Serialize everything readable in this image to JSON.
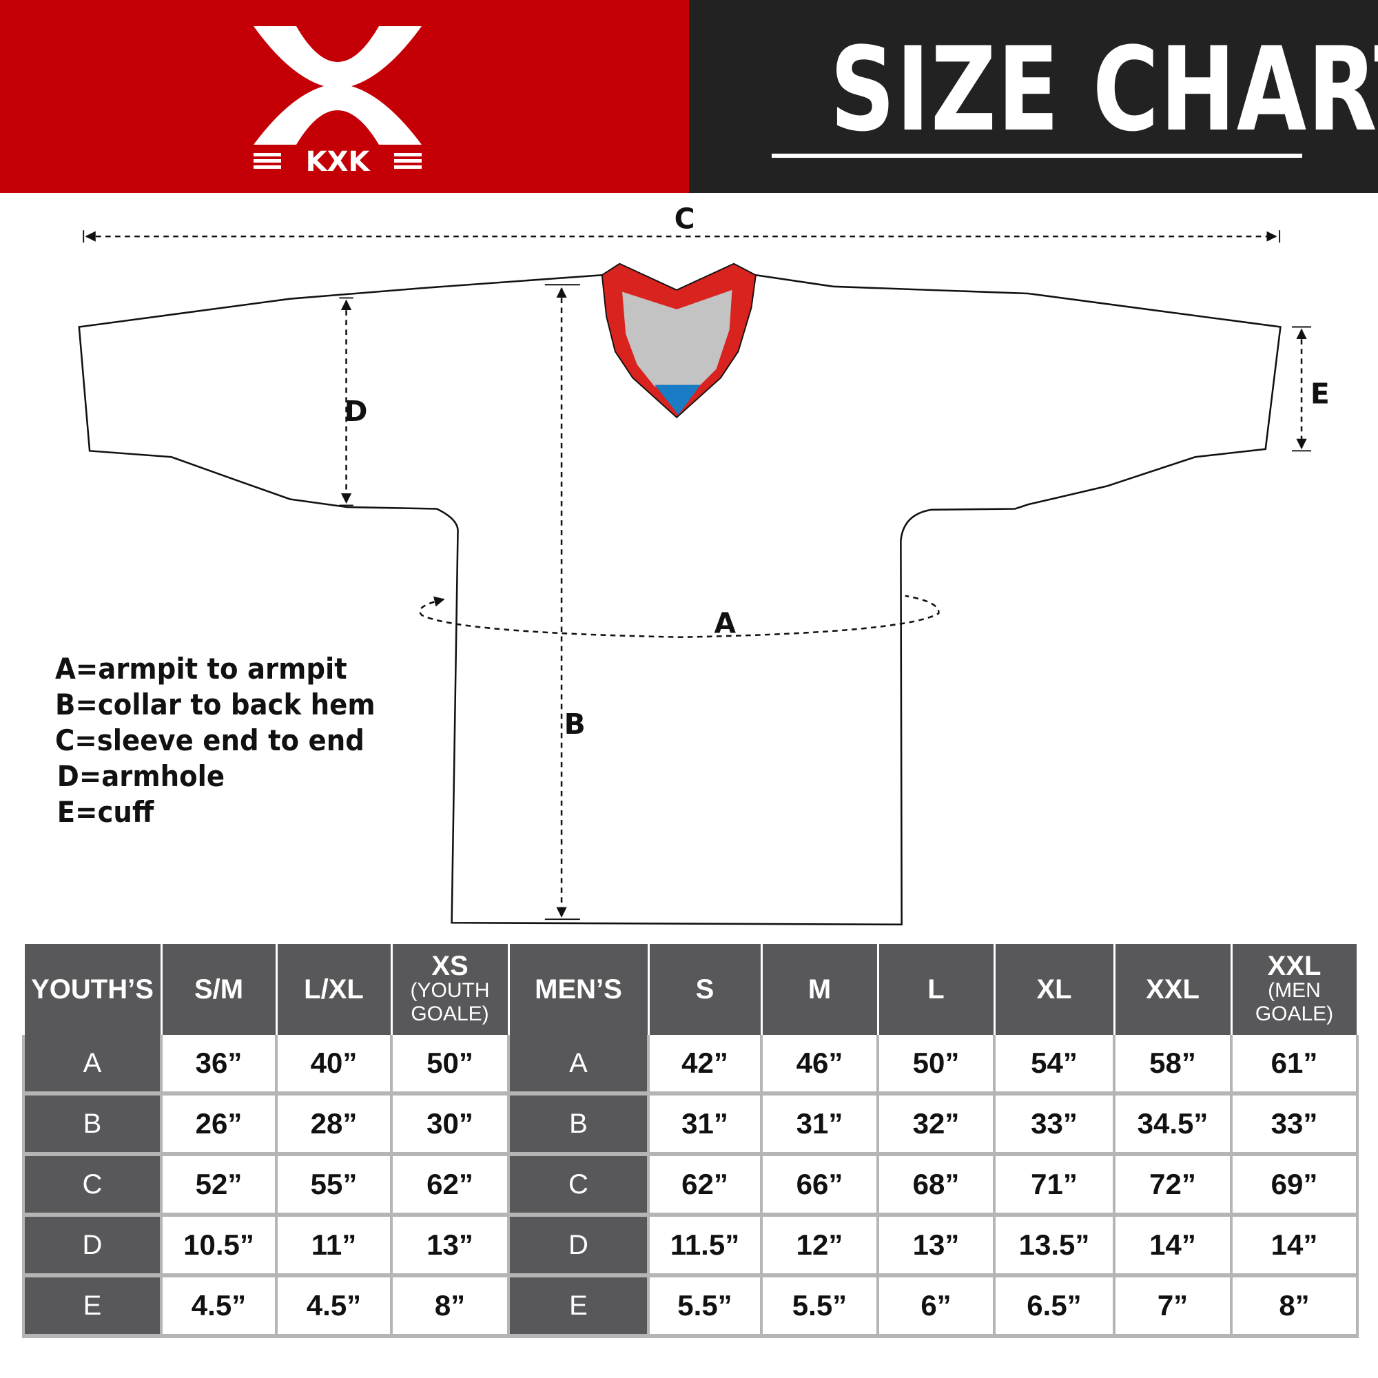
{
  "header": {
    "brand": "KXK",
    "title": "SIZE CHART",
    "brand_color": "#c40006",
    "title_bg_color": "#222222"
  },
  "diagram": {
    "labels": {
      "a": "A",
      "b": "B",
      "c": "C",
      "d": "D",
      "e": "E"
    },
    "collar_colors": {
      "trim": "#d8231f",
      "inner": "#c3c3c3",
      "tag": "#1a7cc4"
    }
  },
  "legend": [
    "A=armpit to armpit",
    "B=collar to back hem",
    "C=sleeve end to end",
    "D=armhole",
    "E=cuff"
  ],
  "table": {
    "youth": {
      "header": "YOUTH’S",
      "sizes": [
        {
          "main": "S/M",
          "sub": ""
        },
        {
          "main": "L/XL",
          "sub": ""
        },
        {
          "main": "XS",
          "sub": "(YOUTH GOALE)"
        }
      ]
    },
    "men": {
      "header": "MEN’S",
      "sizes": [
        {
          "main": "S",
          "sub": ""
        },
        {
          "main": "M",
          "sub": ""
        },
        {
          "main": "L",
          "sub": ""
        },
        {
          "main": "XL",
          "sub": ""
        },
        {
          "main": "XXL",
          "sub": ""
        },
        {
          "main": "XXL",
          "sub": "(MEN GOALE)"
        }
      ]
    },
    "rows": [
      {
        "label": "A",
        "youth": [
          "36”",
          "40”",
          "50”"
        ],
        "men": [
          "42”",
          "46”",
          "50”",
          "54”",
          "58”",
          "61”"
        ]
      },
      {
        "label": "B",
        "youth": [
          "26”",
          "28”",
          "30”"
        ],
        "men": [
          "31”",
          "31”",
          "32”",
          "33”",
          "34.5”",
          "33”"
        ]
      },
      {
        "label": "C",
        "youth": [
          "52”",
          "55”",
          "62”"
        ],
        "men": [
          "62”",
          "66”",
          "68”",
          "71”",
          "72”",
          "69”"
        ]
      },
      {
        "label": "D",
        "youth": [
          "10.5”",
          "11”",
          "13”"
        ],
        "men": [
          "11.5”",
          "12”",
          "13”",
          "13.5”",
          "14”",
          "14”"
        ]
      },
      {
        "label": "E",
        "youth": [
          "4.5”",
          "4.5”",
          "8”"
        ],
        "men": [
          "5.5”",
          "5.5”",
          "6”",
          "6.5”",
          "7”",
          "8”"
        ]
      }
    ]
  }
}
